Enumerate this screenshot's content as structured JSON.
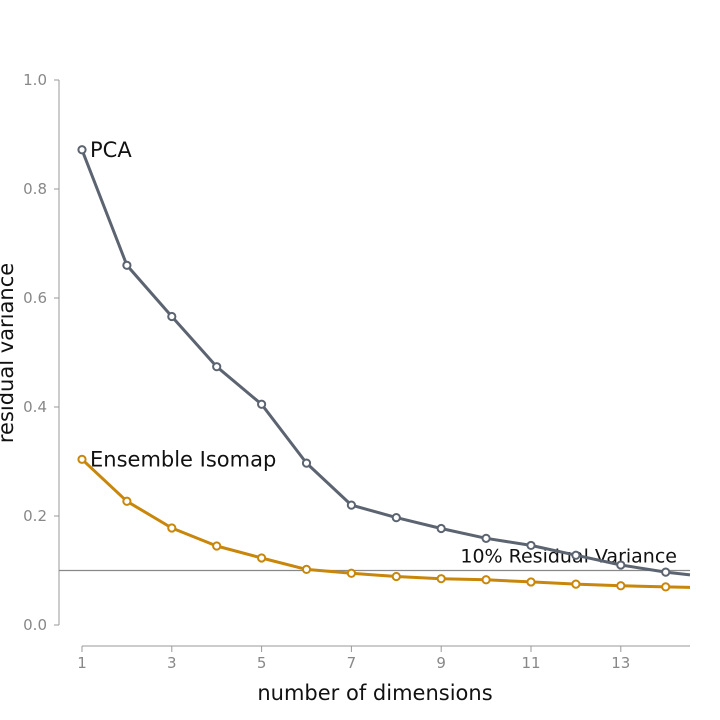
{
  "chart_data": {
    "type": "line",
    "title": "",
    "xlabel": "number of dimensions",
    "ylabel": "residual variance",
    "xlim": [
      1,
      14.5
    ],
    "ylim": [
      0,
      1.0
    ],
    "x_ticks": [
      1,
      3,
      5,
      7,
      9,
      11,
      13
    ],
    "y_ticks": [
      0.0,
      0.2,
      0.4,
      0.6,
      0.8,
      1.0
    ],
    "y_tick_labels": [
      "0.0",
      "0.2",
      "0.4",
      "0.6",
      "0.8",
      "1.0"
    ],
    "x": [
      1,
      2,
      3,
      4,
      5,
      6,
      7,
      8,
      9,
      10,
      11,
      12,
      13,
      14
    ],
    "series": [
      {
        "name": "PCA",
        "color": "#5b6470",
        "values": [
          0.872,
          0.66,
          0.566,
          0.474,
          0.405,
          0.297,
          0.22,
          0.197,
          0.177,
          0.159,
          0.146,
          0.128,
          0.11,
          0.097
        ],
        "tail_value": 0.092
      },
      {
        "name": "Ensemble Isomap",
        "color": "#c8860a",
        "values": [
          0.304,
          0.227,
          0.178,
          0.145,
          0.123,
          0.102,
          0.095,
          0.089,
          0.085,
          0.083,
          0.079,
          0.075,
          0.072,
          0.07
        ],
        "tail_value": 0.069
      }
    ],
    "reference_line": {
      "y": 0.1,
      "label": "10% Residual Variance",
      "color": "#888888"
    },
    "grid": false,
    "legend": "none"
  }
}
